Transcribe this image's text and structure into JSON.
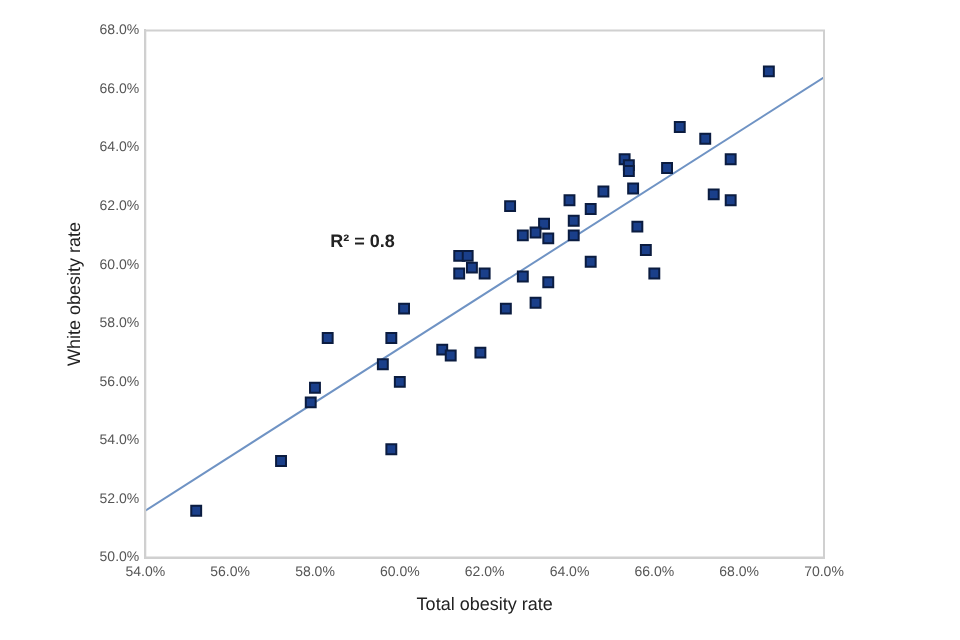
{
  "chart_data": {
    "type": "scatter",
    "xlabel": "Total obesity rate",
    "ylabel": "White obesity rate",
    "annotations": [
      "R² = 0.8"
    ],
    "marker": "square",
    "grid": false,
    "legend": false,
    "xlim": [
      54,
      70
    ],
    "xticks": [
      {
        "value": 54,
        "label": "54.0%"
      },
      {
        "value": 56,
        "label": "56.0%"
      },
      {
        "value": 58,
        "label": "58.0%"
      },
      {
        "value": 60,
        "label": "60.0%"
      },
      {
        "value": 62,
        "label": "62.0%"
      },
      {
        "value": 64,
        "label": "64.0%"
      },
      {
        "value": 66,
        "label": "66.0%"
      },
      {
        "value": 68,
        "label": "68.0%"
      },
      {
        "value": 70,
        "label": "70.0%"
      }
    ],
    "ylim": [
      50,
      68
    ],
    "yticks": [
      {
        "value": 50,
        "label": "50.0%"
      },
      {
        "value": 52,
        "label": "52.0%"
      },
      {
        "value": 54,
        "label": "54.0%"
      },
      {
        "value": 56,
        "label": "56.0%"
      },
      {
        "value": 58,
        "label": "58.0%"
      },
      {
        "value": 60,
        "label": "60.0%"
      },
      {
        "value": 62,
        "label": "62.0%"
      },
      {
        "value": 64,
        "label": "64.0%"
      },
      {
        "value": 66,
        "label": "66.0%"
      },
      {
        "value": 68,
        "label": "68.0%"
      }
    ],
    "series": [
      {
        "color": "#1a3f8a",
        "x": [
          62.6,
          62.9,
          61.4,
          61.6,
          61.4,
          61.7,
          62.0,
          62.9,
          68.7,
          66.6,
          67.2,
          67.8,
          65.3,
          65.4,
          65.4,
          66.3,
          65.5,
          64.8,
          67.4,
          67.8,
          64.0,
          64.5,
          64.1,
          65.6,
          63.4,
          63.2,
          63.5,
          64.1,
          65.8,
          64.5,
          66.0,
          63.5,
          63.2,
          60.1,
          62.5,
          58.3,
          59.8,
          61.0,
          61.2,
          61.9,
          59.6,
          58.0,
          60.0,
          57.9,
          59.8,
          57.2,
          55.2
        ],
        "values": [
          62.0,
          61.0,
          60.3,
          60.3,
          59.7,
          59.9,
          59.7,
          59.6,
          66.6,
          64.7,
          64.3,
          63.6,
          63.6,
          63.4,
          63.2,
          63.3,
          62.6,
          62.5,
          62.4,
          62.2,
          62.2,
          61.9,
          61.5,
          61.3,
          61.4,
          61.1,
          60.9,
          61.0,
          60.5,
          60.1,
          59.7,
          59.4,
          58.7,
          58.5,
          58.5,
          57.5,
          57.5,
          57.1,
          56.9,
          57.0,
          56.6,
          55.8,
          56.0,
          55.3,
          53.7,
          53.3,
          51.6
        ]
      },
      {
        "type": "line",
        "color": "#6f93c4",
        "marker": "none",
        "x": [
          54,
          70
        ],
        "values": [
          51.6,
          66.4
        ]
      }
    ]
  }
}
